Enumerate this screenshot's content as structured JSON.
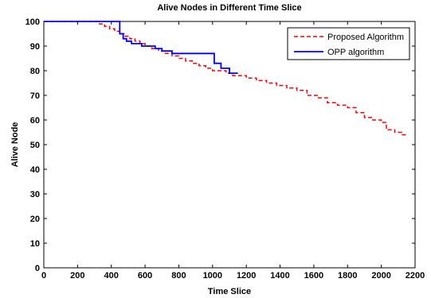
{
  "chart_data": {
    "type": "line",
    "title": "Alive Nodes in Different Time Slice",
    "xlabel": "Time Slice",
    "ylabel": "Alive Node",
    "xlim": [
      0,
      2200
    ],
    "ylim": [
      0,
      100
    ],
    "xticks": [
      0,
      200,
      400,
      600,
      800,
      1000,
      1200,
      1400,
      1600,
      1800,
      2000,
      2200
    ],
    "yticks": [
      0,
      10,
      20,
      30,
      40,
      50,
      60,
      70,
      80,
      90,
      100
    ],
    "grid": false,
    "legend_position": "top-right",
    "series": [
      {
        "name": "Proposed Algorithm",
        "color": "#ff0000",
        "style": "dashed",
        "x": [
          0,
          330,
          360,
          390,
          420,
          450,
          480,
          510,
          540,
          570,
          600,
          640,
          680,
          720,
          760,
          800,
          840,
          880,
          920,
          960,
          1000,
          1040,
          1080,
          1120,
          1160,
          1200,
          1260,
          1320,
          1380,
          1440,
          1500,
          1560,
          1620,
          1680,
          1740,
          1800,
          1850,
          1900,
          1950,
          2000,
          2030,
          2080,
          2120,
          2160
        ],
        "y": [
          100,
          99,
          98,
          97,
          96,
          95,
          94,
          93,
          92,
          91,
          90,
          89,
          88,
          87,
          86,
          85,
          84,
          83,
          82,
          81,
          80,
          80,
          79,
          78,
          78,
          77,
          76,
          75,
          74,
          73,
          72,
          70,
          69,
          67,
          66,
          65,
          63,
          61,
          60,
          59,
          56,
          55,
          54,
          54
        ]
      },
      {
        "name": "OPP algorithm",
        "color": "#0000ff",
        "style": "solid",
        "x": [
          0,
          450,
          470,
          490,
          520,
          550,
          580,
          620,
          660,
          700,
          760,
          850,
          1000,
          1010,
          1020,
          1050,
          1080,
          1100,
          1150
        ],
        "y": [
          100,
          95,
          93,
          92,
          91,
          91,
          90,
          90,
          89,
          88,
          87,
          87,
          87,
          83,
          83,
          81,
          81,
          79,
          79
        ]
      }
    ]
  }
}
